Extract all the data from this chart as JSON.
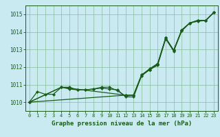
{
  "title": "Graphe pression niveau de la mer (hPa)",
  "bg_color": "#c8eaf0",
  "grid_color": "#88bb99",
  "line_color": "#1a5c1a",
  "xlim": [
    -0.5,
    23.5
  ],
  "ylim": [
    1009.5,
    1015.5
  ],
  "yticks": [
    1010,
    1011,
    1012,
    1013,
    1014,
    1015
  ],
  "xticks": [
    0,
    1,
    2,
    3,
    4,
    5,
    6,
    7,
    8,
    9,
    10,
    11,
    12,
    13,
    14,
    15,
    16,
    17,
    18,
    19,
    20,
    21,
    22,
    23
  ],
  "s1_x": [
    0,
    1,
    2,
    3,
    4,
    5,
    6,
    7,
    8,
    9,
    10,
    11,
    12,
    13,
    14,
    15,
    16,
    17,
    18,
    19,
    20,
    21,
    22,
    23
  ],
  "s1_y": [
    1010.0,
    1010.6,
    1010.45,
    1010.45,
    1010.85,
    1010.75,
    1010.7,
    1010.7,
    1010.75,
    1010.8,
    1010.75,
    1010.7,
    1010.3,
    1010.3,
    1011.5,
    1011.85,
    1012.1,
    1013.6,
    1012.9,
    1014.05,
    1014.5,
    1014.6,
    1014.65,
    1015.1
  ],
  "s2_x": [
    0,
    4,
    5,
    6,
    7,
    8,
    9,
    10,
    11,
    12,
    13,
    14,
    15,
    16,
    17,
    18,
    19,
    20,
    21,
    22,
    23
  ],
  "s2_y": [
    1010.0,
    1010.85,
    1010.85,
    1010.7,
    1010.7,
    1010.75,
    1010.85,
    1010.85,
    1010.65,
    1010.35,
    1010.4,
    1011.55,
    1011.85,
    1012.15,
    1013.65,
    1012.95,
    1014.1,
    1014.5,
    1014.65,
    1014.65,
    1015.1
  ],
  "s3_x": [
    0,
    4,
    12,
    13,
    14,
    15,
    16,
    17,
    18,
    19,
    20,
    21,
    22,
    23
  ],
  "s3_y": [
    1010.0,
    1010.85,
    1010.4,
    1010.4,
    1011.55,
    1011.85,
    1012.15,
    1013.65,
    1012.95,
    1014.1,
    1014.5,
    1014.65,
    1014.65,
    1015.1
  ],
  "s4_x": [
    0,
    12,
    13,
    14,
    15,
    16,
    17,
    18,
    19,
    20,
    21,
    22,
    23
  ],
  "s4_y": [
    1010.0,
    1010.4,
    1010.4,
    1011.55,
    1011.9,
    1012.2,
    1013.65,
    1012.95,
    1014.1,
    1014.5,
    1014.65,
    1014.65,
    1015.1
  ],
  "figw": 3.2,
  "figh": 2.0,
  "dpi": 100
}
